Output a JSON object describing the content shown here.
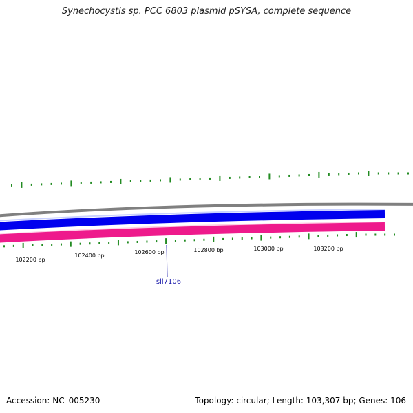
{
  "title": "Synechocystis sp. PCC 6803 plasmid pSYSA, complete sequence",
  "footer": {
    "accession": "Accession: NC_005230",
    "summary": "Topology: circular; Length: 103,307 bp; Genes: 106"
  },
  "scale_labels": [
    "102200 bp",
    "102400 bp",
    "102600 bp",
    "102800 bp",
    "103000 bp",
    "103200 bp"
  ],
  "gene_label": "sll7106",
  "colors": {
    "backbone": "#808080",
    "forward_strand": "#0000ee",
    "reverse_strand": "#ee1a8c",
    "gc_ticks": "#228b22",
    "gene_label": "#1a1aaa"
  },
  "gc_ticks_outer": [
    "short",
    "tall",
    "short",
    "short",
    "short",
    "short",
    "tall",
    "short",
    "short",
    "short",
    "short",
    "tall",
    "short",
    "short",
    "short",
    "short",
    "tall",
    "short",
    "short",
    "short",
    "short",
    "tall",
    "short",
    "short",
    "short",
    "short",
    "tall",
    "short",
    "short",
    "short",
    "short",
    "tall",
    "short",
    "short",
    "short",
    "short",
    "tall",
    "short",
    "short",
    "short",
    "short"
  ],
  "gc_ticks_inner": [
    "short",
    "short",
    "tall",
    "short",
    "short",
    "short",
    "short",
    "tall",
    "short",
    "short",
    "short",
    "short",
    "tall",
    "short",
    "short",
    "short",
    "short",
    "tall",
    "short",
    "short",
    "short",
    "short",
    "tall",
    "short",
    "short",
    "short",
    "short",
    "tall",
    "short",
    "short",
    "short",
    "short",
    "tall",
    "short",
    "short",
    "short",
    "short",
    "tall",
    "short",
    "short",
    "short",
    "short"
  ]
}
